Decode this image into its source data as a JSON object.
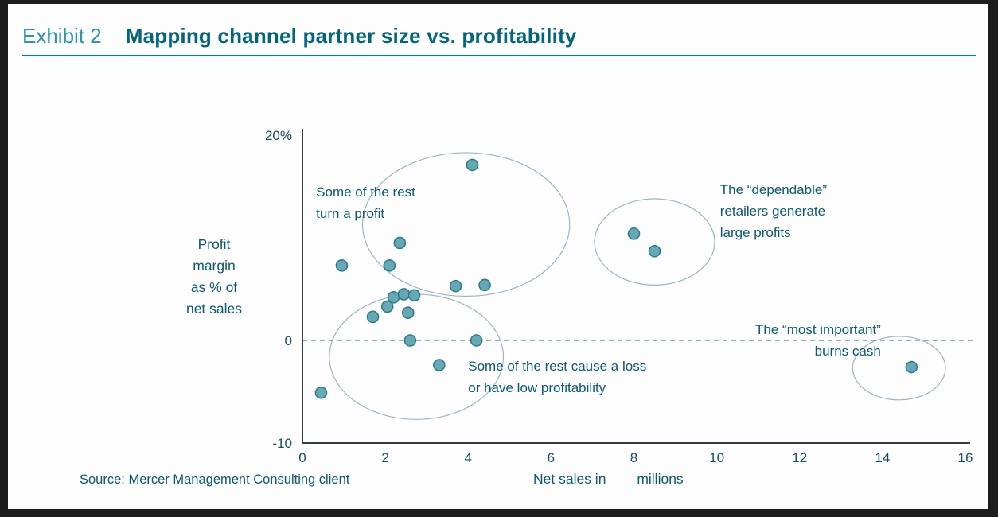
{
  "header": {
    "exhibit_label": "Exhibit 2",
    "title": "Mapping channel partner size vs. profitability"
  },
  "source": "Source: Mercer Management Consulting client",
  "chart_data": {
    "type": "scatter",
    "title": "Mapping channel partner size vs. profitability",
    "xlabel": "Net sales in        millions",
    "ylabel": "Profit margin as % of net sales",
    "ylabel_lines": [
      "Profit",
      "margin",
      "as % of",
      "net sales"
    ],
    "xlim": [
      0,
      16
    ],
    "ylim": [
      -10,
      20
    ],
    "grid": false,
    "legend": false,
    "x_ticks": [
      0,
      2,
      4,
      6,
      8,
      10,
      12,
      14,
      16
    ],
    "y_ticks": [
      {
        "value": 20,
        "label": "20%"
      },
      {
        "value": 0,
        "label": "0"
      },
      {
        "value": -10,
        "label": "-10"
      }
    ],
    "zero_line": {
      "y": 0,
      "style": "dashed"
    },
    "points": [
      [
        0.45,
        -5.1
      ],
      [
        0.95,
        7.3
      ],
      [
        1.7,
        2.3
      ],
      [
        2.05,
        3.3
      ],
      [
        2.1,
        7.3
      ],
      [
        2.2,
        4.2
      ],
      [
        2.35,
        9.5
      ],
      [
        2.45,
        4.5
      ],
      [
        2.55,
        2.7
      ],
      [
        2.6,
        0
      ],
      [
        2.7,
        4.4
      ],
      [
        3.3,
        -2.4
      ],
      [
        3.7,
        5.3
      ],
      [
        4.1,
        17.1
      ],
      [
        4.2,
        0
      ],
      [
        4.4,
        5.4
      ],
      [
        8.0,
        10.4
      ],
      [
        8.5,
        8.7
      ],
      [
        14.7,
        -2.6
      ]
    ],
    "ellipses": [
      {
        "name": "rest-turn-profit",
        "cx": 3.95,
        "cy": 11.3,
        "rx": 2.5,
        "ry": 7.0
      },
      {
        "name": "rest-cause-loss",
        "cx": 2.75,
        "cy": -1.6,
        "rx": 2.1,
        "ry": 6.1
      },
      {
        "name": "dependable-retailers",
        "cx": 8.5,
        "cy": 9.6,
        "rx": 1.45,
        "ry": 4.2
      },
      {
        "name": "most-important",
        "cx": 14.4,
        "cy": -2.7,
        "rx": 1.12,
        "ry": 3.1
      }
    ],
    "annotations": [
      {
        "text": "Some of the rest\nturn a profit",
        "x": 0.33,
        "y": 15.5,
        "align": "left"
      },
      {
        "text": "The “dependable”\nretailers generate\nlarge profits",
        "x": 10.08,
        "y": 15.7,
        "align": "left"
      },
      {
        "text": "The “most important”\nburns cash",
        "x": 13.96,
        "y": 2.1,
        "align": "right"
      },
      {
        "text": "Some of the rest cause a loss\nor have low profitability",
        "x": 4.0,
        "y": -1.48,
        "align": "left"
      }
    ]
  },
  "colors": {
    "exhibit_teal": "#2e95a8",
    "title_teal": "#03657c",
    "accent_teal": "#0a7c92",
    "text": "#0a5a72",
    "tick_text": "#174f66",
    "axis": "#343e43",
    "point_fill": "#66a9b4",
    "point_stroke": "#2f7c8b",
    "ellipse_stroke": "#9bb5c4",
    "dashed_line": "#7097ac"
  }
}
